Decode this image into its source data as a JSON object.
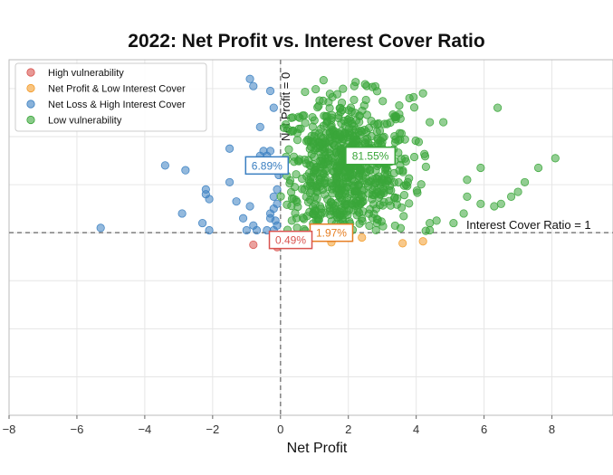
{
  "chart_data": {
    "type": "scatter",
    "title": "2022: Net Profit vs. Interest Cover Ratio",
    "xlabel": "Net Profit",
    "ylabel": "",
    "xlim": [
      -8,
      9.8
    ],
    "ylim": [
      -3.8,
      3.6
    ],
    "x_ticks": [
      -8,
      -6,
      -4,
      -2,
      0,
      2,
      4,
      6,
      8
    ],
    "grid": true,
    "legend_position": "top-left",
    "reference_lines": [
      {
        "axis": "x",
        "value": 0,
        "label": "Net Profit = 0"
      },
      {
        "axis": "y",
        "value": 0,
        "label": "Interest Cover Ratio = 1"
      }
    ],
    "series": [
      {
        "name": "High vulnerability",
        "color": "#d9534f",
        "points": [
          [
            -0.8,
            -0.25
          ],
          [
            -0.1,
            -0.3
          ],
          [
            0.05,
            -0.2
          ]
        ]
      },
      {
        "name": "Net Profit & Low Interest Cover",
        "color": "#f39c2b",
        "points": [
          [
            1.5,
            -0.2
          ],
          [
            2.4,
            -0.1
          ],
          [
            3.6,
            -0.22
          ],
          [
            4.2,
            -0.18
          ],
          [
            0.8,
            -0.15
          ]
        ]
      },
      {
        "name": "Net Loss & High Interest Cover",
        "color": "#3a7fc1",
        "points": [
          [
            -5.3,
            0.1
          ],
          [
            -3.4,
            1.4
          ],
          [
            -2.8,
            1.3
          ],
          [
            -2.2,
            0.9
          ],
          [
            -2.2,
            0.8
          ],
          [
            -2.1,
            0.7
          ],
          [
            -2.9,
            0.4
          ],
          [
            -2.3,
            0.2
          ],
          [
            -2.1,
            0.05
          ],
          [
            -1.5,
            1.75
          ],
          [
            -1.5,
            1.05
          ],
          [
            -1.3,
            0.65
          ],
          [
            -1.1,
            0.3
          ],
          [
            -1.0,
            0.05
          ],
          [
            -0.9,
            3.2
          ],
          [
            -0.8,
            3.05
          ],
          [
            -0.9,
            0.55
          ],
          [
            -0.8,
            0.15
          ],
          [
            -0.7,
            0.05
          ],
          [
            -0.6,
            2.2
          ],
          [
            -0.6,
            1.6
          ],
          [
            -0.5,
            1.7
          ],
          [
            -0.4,
            1.6
          ],
          [
            -0.3,
            1.7
          ],
          [
            -0.3,
            1.4
          ],
          [
            -0.3,
            0.4
          ],
          [
            -0.2,
            0.75
          ],
          [
            -0.2,
            0.5
          ],
          [
            -0.15,
            0.25
          ],
          [
            -0.1,
            0.6
          ],
          [
            -0.1,
            0.9
          ],
          [
            -0.1,
            0.15
          ],
          [
            -0.3,
            2.95
          ],
          [
            -0.2,
            2.6
          ],
          [
            -0.05,
            1.2
          ],
          [
            -0.3,
            0.3
          ],
          [
            -0.2,
            0.05
          ],
          [
            -0.4,
            0.05
          ]
        ]
      },
      {
        "name": "Low vulnerability",
        "color": "#3aa63a",
        "points": [
          [
            8.1,
            1.55
          ],
          [
            7.6,
            1.35
          ],
          [
            7.2,
            1.05
          ],
          [
            7.0,
            0.85
          ],
          [
            6.8,
            0.75
          ],
          [
            6.5,
            0.6
          ],
          [
            6.3,
            0.55
          ],
          [
            5.9,
            0.6
          ],
          [
            5.5,
            0.75
          ],
          [
            5.4,
            0.4
          ],
          [
            5.1,
            0.2
          ],
          [
            4.6,
            0.25
          ],
          [
            4.4,
            0.05
          ],
          [
            4.4,
            0.2
          ],
          [
            5.5,
            1.1
          ],
          [
            5.9,
            1.35
          ],
          [
            4.4,
            2.3
          ],
          [
            3.8,
            2.8
          ],
          [
            6.4,
            2.6
          ],
          [
            4.8,
            2.3
          ],
          [
            4.2,
            2.9
          ]
        ]
      },
      {
        "name": "Low vulnerability (cluster)",
        "color": "#3aa63a",
        "cluster": {
          "count": 720,
          "x_range": [
            0,
            4.3
          ],
          "y_range": [
            0.02,
            3.4
          ],
          "x_mean": 1.9,
          "y_mean": 1.3,
          "x_sd": 1.0,
          "y_sd": 0.75
        }
      }
    ]
  },
  "legend": {
    "items": [
      {
        "label": "High vulnerability",
        "color": "#d9534f"
      },
      {
        "label": "Net Profit & Low Interest Cover",
        "color": "#f39c2b"
      },
      {
        "label": "Net Loss & High Interest Cover",
        "color": "#3a7fc1"
      },
      {
        "label": "Low vulnerability",
        "color": "#3aa63a"
      }
    ]
  },
  "annotations": [
    {
      "label": "81.55%",
      "x": 2.65,
      "y": 1.6,
      "color": "#3aa63a"
    },
    {
      "label": "6.89%",
      "x": -0.4,
      "y": 1.4,
      "color": "#3a7fc1"
    },
    {
      "label": "1.97%",
      "x": 1.5,
      "y": 0.0,
      "color": "#e67e22"
    },
    {
      "label": "0.49%",
      "x": 0.3,
      "y": -0.15,
      "color": "#d9534f"
    }
  ]
}
